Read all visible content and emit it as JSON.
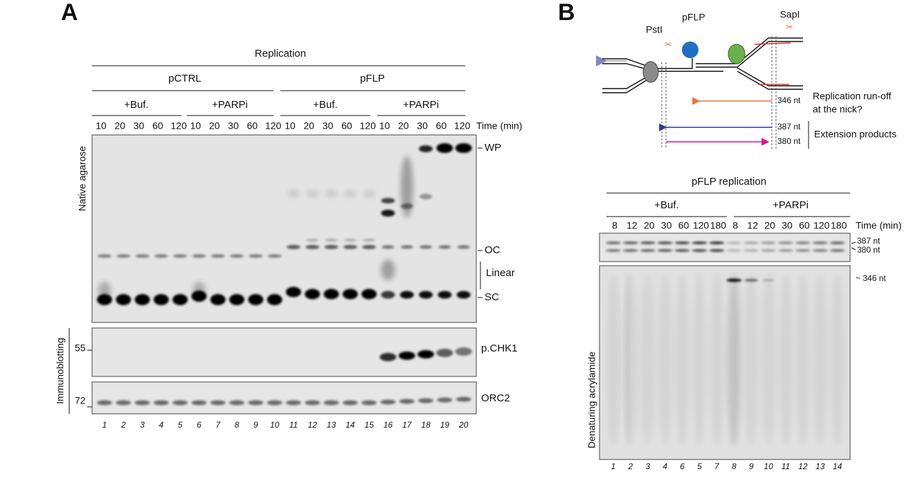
{
  "panel_a": {
    "label": "A",
    "header": "Replication",
    "plasmids": [
      "pCTRL",
      "pFLP"
    ],
    "groups": [
      {
        "treatment": "+Buf.",
        "times": [
          10,
          20,
          30,
          60,
          120
        ]
      },
      {
        "treatment": "+PARPi",
        "times": [
          10,
          20,
          30,
          60,
          120
        ]
      },
      {
        "treatment": "+Buf.",
        "times": [
          10,
          20,
          30,
          60,
          120
        ]
      },
      {
        "treatment": "+PARPi",
        "times": [
          10,
          20,
          30,
          60,
          120
        ]
      }
    ],
    "time_unit": "Time (min)",
    "gel_label": "Native agarose",
    "band_labels": [
      "WP",
      "OC",
      "Linear",
      "SC"
    ],
    "blot_label": "Immunoblotting",
    "blots": [
      {
        "marker": "55",
        "protein": "p.CHK1"
      },
      {
        "marker": "72",
        "protein": "ORC2"
      }
    ],
    "lanes": [
      1,
      2,
      3,
      4,
      5,
      6,
      7,
      8,
      9,
      10,
      11,
      12,
      13,
      14,
      15,
      16,
      17,
      18,
      19,
      20
    ]
  },
  "panel_b": {
    "label": "B",
    "diagram": {
      "site_left": "PstI",
      "plasmid": "pFLP",
      "site_right": "SapI",
      "runoff_size": "346 nt",
      "runoff_note": [
        "Replication run-off",
        "at the nick?"
      ],
      "extension_sizes": [
        "387 nt",
        "380 nt"
      ],
      "extension_note": "Extension products"
    },
    "gel": {
      "title": "pFLP replication",
      "groups": [
        {
          "treatment": "+Buf.",
          "times": [
            8,
            12,
            20,
            30,
            60,
            120,
            180
          ]
        },
        {
          "treatment": "+PARPi",
          "times": [
            8,
            12,
            20,
            30,
            60,
            120,
            180
          ]
        }
      ],
      "time_unit": "Time (min)",
      "top_labels": [
        "387 nt",
        "380 nt"
      ],
      "band_label": "~ 346 nt",
      "gel_label": "Denaturing acrylamide",
      "lanes": [
        1,
        2,
        3,
        4,
        6,
        5,
        7,
        8,
        9,
        10,
        11,
        12,
        13,
        14
      ]
    }
  }
}
